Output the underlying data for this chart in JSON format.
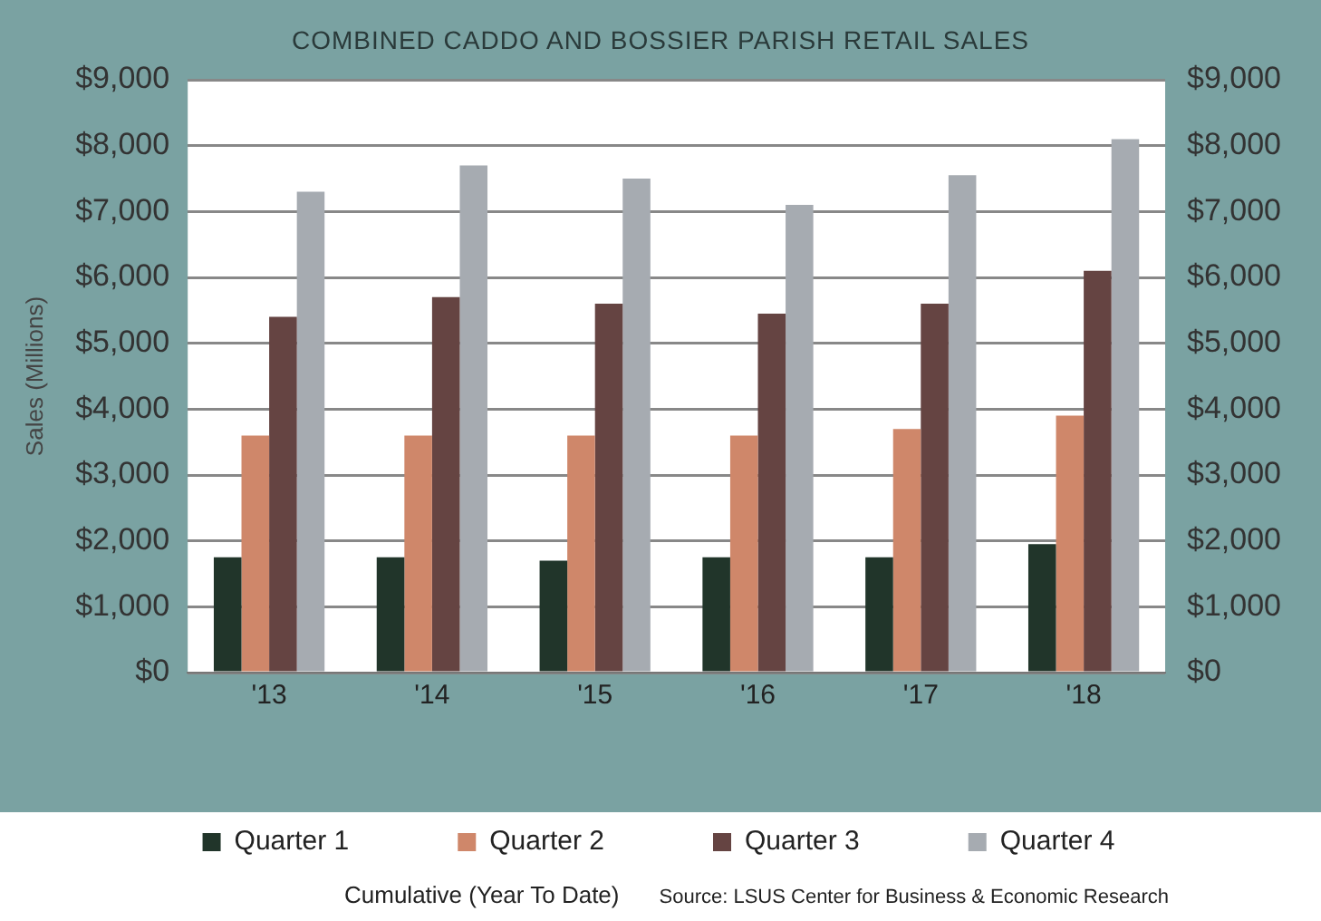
{
  "chart_data": {
    "type": "bar",
    "title": "COMBINED CADDO AND BOSSIER PARISH RETAIL SALES",
    "ylabel": "Sales (Millions)",
    "categories": [
      "'13",
      "'14",
      "'15",
      "'16",
      "'17",
      "'18"
    ],
    "series": [
      {
        "name": "Quarter 1",
        "color": "#21352a",
        "values": [
          1750,
          1750,
          1700,
          1750,
          1750,
          1950
        ]
      },
      {
        "name": "Quarter 2",
        "color": "#cf876a",
        "values": [
          3600,
          3600,
          3600,
          3600,
          3700,
          3900
        ]
      },
      {
        "name": "Quarter 3",
        "color": "#654442",
        "values": [
          5400,
          5700,
          5600,
          5450,
          5600,
          6100
        ]
      },
      {
        "name": "Quarter 4",
        "color": "#a6abb1",
        "values": [
          7300,
          7700,
          7500,
          7100,
          7550,
          8100
        ]
      }
    ],
    "ylim": [
      0,
      9000
    ],
    "yticks": [
      {
        "value": 0,
        "label": "$0"
      },
      {
        "value": 1000,
        "label": "$1,000"
      },
      {
        "value": 2000,
        "label": "$2,000"
      },
      {
        "value": 3000,
        "label": "$3,000"
      },
      {
        "value": 4000,
        "label": "$4,000"
      },
      {
        "value": 5000,
        "label": "$5,000"
      },
      {
        "value": 6000,
        "label": "$6,000"
      },
      {
        "value": 7000,
        "label": "$7,000"
      },
      {
        "value": 8000,
        "label": "$8,000"
      },
      {
        "value": 9000,
        "label": "$9,000"
      }
    ],
    "y2lim": [
      0,
      9000
    ],
    "y2ticks": [
      {
        "value": 0,
        "label": "$0"
      },
      {
        "value": 1000,
        "label": "$1,000"
      },
      {
        "value": 2000,
        "label": "$2,000"
      },
      {
        "value": 3000,
        "label": "$3,000"
      },
      {
        "value": 4000,
        "label": "$4,000"
      },
      {
        "value": 5000,
        "label": "$5,000"
      },
      {
        "value": 6000,
        "label": "$6,000"
      },
      {
        "value": 7000,
        "label": "$7,000"
      },
      {
        "value": 8000,
        "label": "$8,000"
      },
      {
        "value": 9000,
        "label": "$9,000"
      }
    ],
    "grid": "y",
    "legend": "bottom",
    "annotations": [
      "Cumulative (Year To Date)",
      "Source: LSUS Center for Business & Economic Research"
    ]
  }
}
